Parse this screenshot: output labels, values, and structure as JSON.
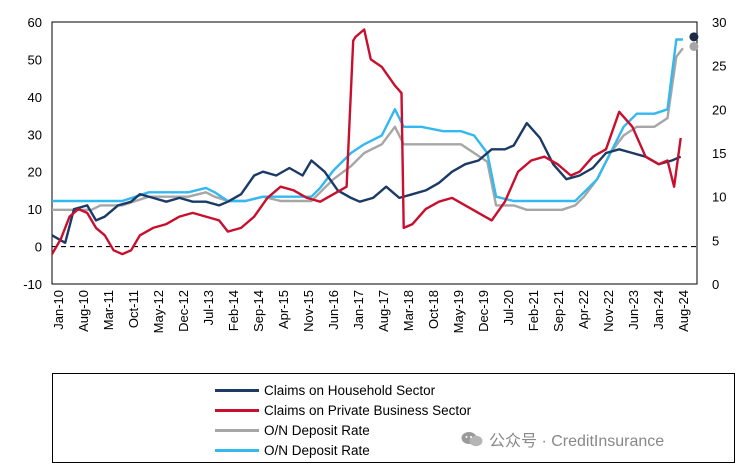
{
  "chart_data": {
    "type": "line",
    "x_tick_labels": [
      "Jan-10",
      "Aug-10",
      "Mar-11",
      "Oct-11",
      "May-12",
      "Dec-12",
      "Jul-13",
      "Feb-14",
      "Sep-14",
      "Apr-15",
      "Nov-15",
      "Jun-16",
      "Jan-17",
      "Aug-17",
      "Mar-18",
      "Oct-18",
      "May-19",
      "Dec-19",
      "Jul-20",
      "Feb-21",
      "Sep-21",
      "Apr-22",
      "Nov-22",
      "Jun-23",
      "Jan-24",
      "Aug-24"
    ],
    "y_left": {
      "ticks": [
        -10,
        0,
        10,
        20,
        30,
        40,
        50,
        60
      ],
      "ylim": [
        -10,
        60
      ]
    },
    "y_right": {
      "ticks": [
        0,
        5,
        10,
        15,
        20,
        25,
        30
      ],
      "ylim": [
        0,
        30
      ]
    },
    "reference_line": {
      "y": 0,
      "style": "dashed",
      "axis": "left"
    },
    "series": [
      {
        "name": "Claims on Household Sector",
        "axis": "left",
        "color": "#1b3a66",
        "x": [
          2010.0,
          2010.3,
          2010.5,
          2010.8,
          2011.0,
          2011.2,
          2011.5,
          2011.8,
          2012.0,
          2012.3,
          2012.6,
          2012.9,
          2013.2,
          2013.5,
          2013.8,
          2014.0,
          2014.3,
          2014.6,
          2014.8,
          2015.1,
          2015.4,
          2015.7,
          2015.9,
          2016.2,
          2016.5,
          2016.8,
          2017.0,
          2017.3,
          2017.6,
          2017.9,
          2018.2,
          2018.5,
          2018.8,
          2019.1,
          2019.4,
          2019.7,
          2020.0,
          2020.3,
          2020.5,
          2020.8,
          2021.1,
          2021.4,
          2021.7,
          2022.0,
          2022.3,
          2022.6,
          2022.9,
          2023.2,
          2023.5,
          2023.8,
          2024.1,
          2024.3
        ],
        "y": [
          3,
          1,
          10,
          11,
          7,
          8,
          11,
          12,
          14,
          13,
          12,
          13,
          12,
          12,
          11,
          12,
          14,
          19,
          20,
          19,
          21,
          19,
          23,
          20,
          15,
          13,
          12,
          13,
          16,
          13,
          14,
          15,
          17,
          20,
          22,
          23,
          26,
          26,
          27,
          33,
          29,
          22,
          18,
          19,
          21,
          25,
          26,
          25,
          24,
          22,
          23,
          24
        ]
      },
      {
        "name": "Claims on Private Business Sector",
        "axis": "left",
        "color": "#c8102e",
        "x": [
          2010.0,
          2010.2,
          2010.4,
          2010.6,
          2010.8,
          2011.0,
          2011.2,
          2011.4,
          2011.6,
          2011.8,
          2012.0,
          2012.3,
          2012.6,
          2012.9,
          2013.2,
          2013.5,
          2013.8,
          2014.0,
          2014.3,
          2014.6,
          2014.9,
          2015.2,
          2015.5,
          2015.8,
          2016.1,
          2016.4,
          2016.7,
          2016.85,
          2016.9,
          2017.1,
          2017.25,
          2017.5,
          2017.8,
          2017.95,
          2018.0,
          2018.2,
          2018.5,
          2018.8,
          2019.1,
          2019.4,
          2019.7,
          2020.0,
          2020.3,
          2020.6,
          2020.9,
          2021.2,
          2021.5,
          2021.8,
          2022.0,
          2022.3,
          2022.6,
          2022.9,
          2023.2,
          2023.5,
          2023.8,
          2024.0,
          2024.15,
          2024.3
        ],
        "y": [
          -2,
          2,
          8,
          10,
          9,
          5,
          3,
          -1,
          -2,
          -1,
          3,
          5,
          6,
          8,
          9,
          8,
          7,
          4,
          5,
          8,
          13,
          16,
          15,
          13,
          12,
          14,
          16,
          55,
          56,
          58,
          50,
          48,
          43,
          41,
          5,
          6,
          10,
          12,
          13,
          11,
          9,
          7,
          12,
          20,
          23,
          24,
          22,
          19,
          20,
          24,
          26,
          36,
          32,
          24,
          22,
          23,
          16,
          29
        ]
      },
      {
        "name": "O/N Deposit Rate",
        "axis": "right",
        "color": "#a6a6a6",
        "x": [
          2010.0,
          2010.9,
          2011.1,
          2011.6,
          2011.9,
          2012.2,
          2012.6,
          2013.1,
          2013.5,
          2013.7,
          2014.0,
          2014.4,
          2014.8,
          2015.2,
          2015.6,
          2015.9,
          2016.1,
          2016.4,
          2016.8,
          2017.1,
          2017.5,
          2017.8,
          2018.0,
          2018.4,
          2018.9,
          2019.3,
          2019.6,
          2019.9,
          2020.1,
          2020.5,
          2020.8,
          2021.1,
          2021.6,
          2021.9,
          2022.1,
          2022.4,
          2022.7,
          2023.0,
          2023.3,
          2023.7,
          2024.0,
          2024.2,
          2024.35
        ],
        "y": [
          8.5,
          8.5,
          9,
          9,
          9.5,
          10,
          10,
          10,
          10.5,
          10,
          9.5,
          9.5,
          10,
          9.5,
          9.5,
          9.5,
          10.5,
          12,
          13.5,
          15,
          16,
          18,
          16,
          16,
          16,
          16,
          15,
          14,
          9,
          9,
          8.5,
          8.5,
          8.5,
          9,
          10,
          12,
          15,
          17,
          18,
          18,
          19,
          26,
          27
        ]
      },
      {
        "name": "O/N Deposit Rate",
        "axis": "right",
        "color": "#33b8f0",
        "x": [
          2010.0,
          2010.9,
          2011.1,
          2011.6,
          2011.9,
          2012.2,
          2012.6,
          2013.1,
          2013.5,
          2013.7,
          2014.0,
          2014.4,
          2014.8,
          2015.2,
          2015.6,
          2015.9,
          2016.1,
          2016.4,
          2016.8,
          2017.1,
          2017.5,
          2017.8,
          2018.0,
          2018.4,
          2018.9,
          2019.3,
          2019.6,
          2019.9,
          2020.1,
          2020.5,
          2020.8,
          2021.1,
          2021.6,
          2021.9,
          2022.1,
          2022.4,
          2022.7,
          2023.0,
          2023.3,
          2023.7,
          2024.0,
          2024.2,
          2024.35
        ],
        "y": [
          9.5,
          9.5,
          9.5,
          9.5,
          10,
          10.5,
          10.5,
          10.5,
          11,
          10.5,
          9.5,
          9.5,
          10,
          10,
          10,
          10,
          11,
          13,
          15,
          16,
          17,
          20,
          18,
          18,
          17.5,
          17.5,
          17,
          15,
          10,
          9.5,
          9.5,
          9.5,
          9.5,
          9.5,
          10.5,
          12,
          15,
          18,
          19.5,
          19.5,
          20,
          28,
          28
        ]
      }
    ],
    "end_markers": [
      {
        "axis": "right",
        "x": 2024.6,
        "y": 28.3,
        "color": "#1b2a45"
      },
      {
        "axis": "right",
        "x": 2024.6,
        "y": 27.2,
        "color": "#a6a6a6"
      }
    ]
  },
  "legend": {
    "items": [
      {
        "label": "Claims on Household Sector",
        "color": "#1b3a66"
      },
      {
        "label": "Claims on Private Business Sector",
        "color": "#c8102e"
      },
      {
        "label": "O/N Deposit Rate",
        "color": "#a6a6a6"
      },
      {
        "label": "O/N Deposit Rate",
        "color": "#33b8f0"
      }
    ]
  },
  "watermark": {
    "text": "公众号 · CreditInsurance"
  }
}
